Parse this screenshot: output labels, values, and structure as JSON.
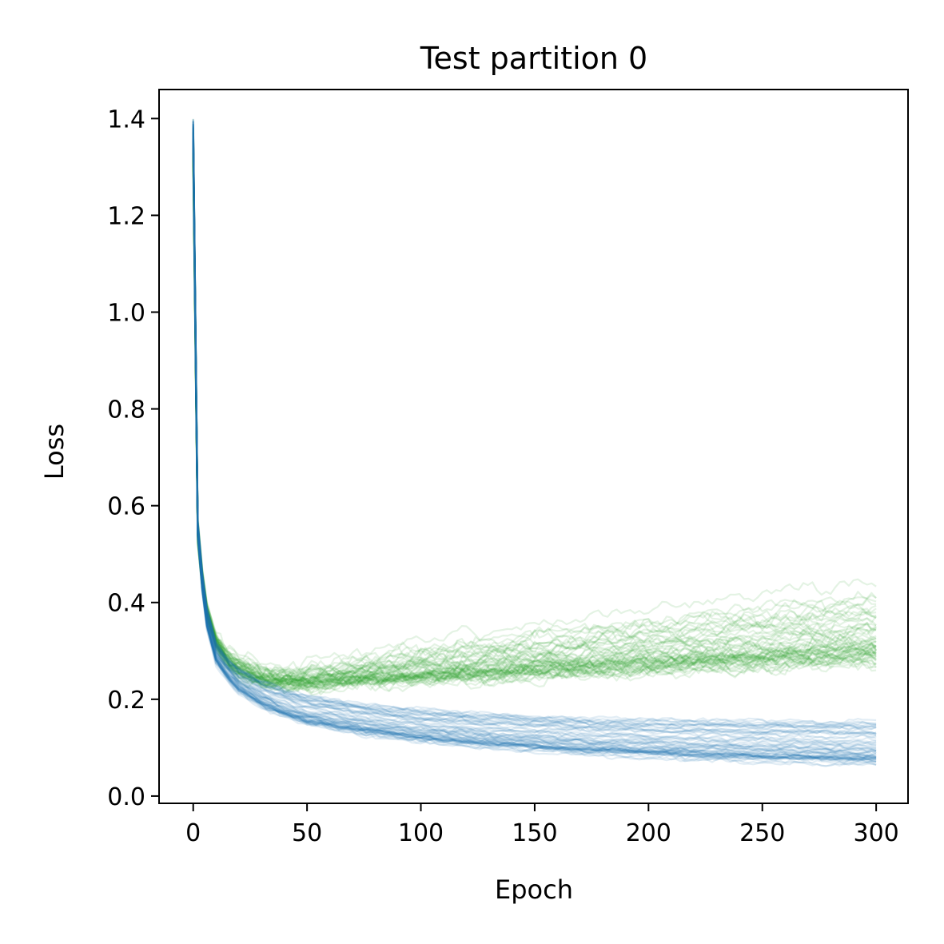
{
  "chart_data": {
    "type": "line",
    "title": "Test partition 0",
    "xlabel": "Epoch",
    "ylabel": "Loss",
    "xlim": [
      -15,
      314
    ],
    "ylim": [
      -0.015,
      1.46
    ],
    "xticks": [
      0,
      50,
      100,
      150,
      200,
      250,
      300
    ],
    "xtick_labels": [
      "0",
      "50",
      "100",
      "150",
      "200",
      "250",
      "300"
    ],
    "yticks": [
      0.0,
      0.2,
      0.4,
      0.6,
      0.8,
      1.0,
      1.2,
      1.4
    ],
    "ytick_labels": [
      "0.0",
      "0.2",
      "0.4",
      "0.6",
      "0.8",
      "1.0",
      "1.2",
      "1.4"
    ],
    "grid": false,
    "legend": "none",
    "series_groups": [
      {
        "color": "#2ca02c",
        "opacity": 0.13,
        "runs": 60,
        "description_note": "",
        "x": [
          0,
          2,
          5,
          10,
          15,
          20,
          30,
          40,
          50,
          75,
          100,
          125,
          150,
          175,
          200,
          225,
          250,
          275,
          300
        ],
        "mean": [
          1.35,
          0.55,
          0.4,
          0.32,
          0.285,
          0.265,
          0.245,
          0.24,
          0.24,
          0.25,
          0.258,
          0.266,
          0.274,
          0.282,
          0.29,
          0.298,
          0.305,
          0.313,
          0.32
        ],
        "spread_low": [
          0.05,
          0.03,
          0.02,
          0.015,
          0.015,
          0.015,
          0.015,
          0.015,
          0.015,
          0.018,
          0.022,
          0.026,
          0.03,
          0.034,
          0.038,
          0.042,
          0.045,
          0.048,
          0.05
        ],
        "spread_high": [
          0.05,
          0.03,
          0.02,
          0.02,
          0.02,
          0.02,
          0.02,
          0.025,
          0.03,
          0.045,
          0.06,
          0.07,
          0.08,
          0.09,
          0.1,
          0.11,
          0.115,
          0.12,
          0.125
        ],
        "noise": 0.012
      },
      {
        "color": "#1f77b4",
        "opacity": 0.13,
        "runs": 60,
        "description_note": "",
        "x": [
          0,
          2,
          5,
          10,
          15,
          20,
          30,
          40,
          50,
          75,
          100,
          125,
          150,
          175,
          200,
          225,
          250,
          275,
          300
        ],
        "mean": [
          1.37,
          0.55,
          0.38,
          0.29,
          0.255,
          0.23,
          0.2,
          0.18,
          0.165,
          0.145,
          0.132,
          0.122,
          0.114,
          0.108,
          0.103,
          0.099,
          0.096,
          0.093,
          0.091
        ],
        "spread_low": [
          0.03,
          0.02,
          0.02,
          0.02,
          0.02,
          0.02,
          0.02,
          0.02,
          0.02,
          0.022,
          0.024,
          0.025,
          0.026,
          0.027,
          0.028,
          0.029,
          0.03,
          0.03,
          0.03
        ],
        "spread_high": [
          0.03,
          0.02,
          0.03,
          0.03,
          0.03,
          0.035,
          0.04,
          0.042,
          0.044,
          0.046,
          0.048,
          0.05,
          0.052,
          0.054,
          0.056,
          0.058,
          0.06,
          0.062,
          0.064
        ],
        "noise": 0.004
      }
    ]
  }
}
